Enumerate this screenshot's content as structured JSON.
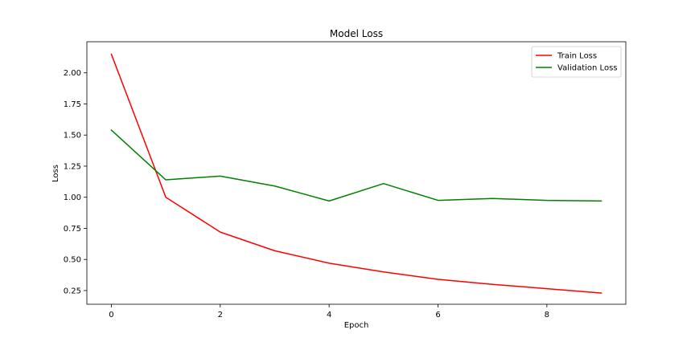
{
  "chart_data": {
    "type": "line",
    "title": "Model Loss",
    "xlabel": "Epoch",
    "ylabel": "Loss",
    "xlim": [
      -0.45,
      9.45
    ],
    "ylim": [
      0.14,
      2.25
    ],
    "x_ticks": [
      0,
      2,
      4,
      6,
      8
    ],
    "y_ticks": [
      0.25,
      0.5,
      0.75,
      1.0,
      1.25,
      1.5,
      1.75,
      2.0
    ],
    "x_tick_labels": [
      "0",
      "2",
      "4",
      "6",
      "8"
    ],
    "y_tick_labels": [
      "0.25",
      "0.50",
      "0.75",
      "1.00",
      "1.25",
      "1.50",
      "1.75",
      "2.00"
    ],
    "grid": false,
    "legend_position": "top-right",
    "x": [
      0,
      1,
      2,
      3,
      4,
      5,
      6,
      7,
      8,
      9
    ],
    "series": [
      {
        "name": "Train Loss",
        "color": "#ff0000",
        "values": [
          2.15,
          1.0,
          0.72,
          0.57,
          0.47,
          0.4,
          0.34,
          0.3,
          0.265,
          0.23
        ]
      },
      {
        "name": "Validation Loss",
        "color": "#008000",
        "values": [
          1.54,
          1.14,
          1.17,
          1.09,
          0.97,
          1.11,
          0.975,
          0.99,
          0.975,
          0.97
        ]
      }
    ]
  }
}
